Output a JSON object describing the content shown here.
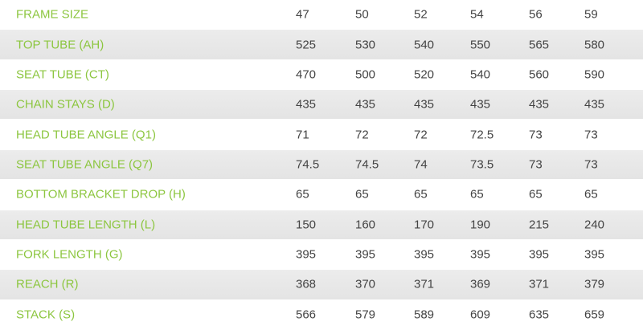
{
  "table": {
    "rows": [
      {
        "label": "FRAME SIZE",
        "values": [
          47,
          50,
          52,
          54,
          56,
          59
        ]
      },
      {
        "label": "TOP TUBE (AH)",
        "values": [
          525,
          530,
          540,
          550,
          565,
          580
        ]
      },
      {
        "label": "SEAT TUBE (CT)",
        "values": [
          470,
          500,
          520,
          540,
          560,
          590
        ]
      },
      {
        "label": "CHAIN STAYS (D)",
        "values": [
          435,
          435,
          435,
          435,
          435,
          435
        ]
      },
      {
        "label": "HEAD TUBE ANGLE (Q1)",
        "values": [
          71,
          72,
          72,
          72.5,
          73,
          73
        ]
      },
      {
        "label": "SEAT TUBE ANGLE (Q7)",
        "values": [
          74.5,
          74.5,
          74,
          73.5,
          73,
          73
        ]
      },
      {
        "label": "BOTTOM BRACKET DROP (H)",
        "values": [
          65,
          65,
          65,
          65,
          65,
          65
        ]
      },
      {
        "label": "HEAD TUBE LENGTH (L)",
        "values": [
          150,
          160,
          170,
          190,
          215,
          240
        ]
      },
      {
        "label": "FORK LENGTH (G)",
        "values": [
          395,
          395,
          395,
          395,
          395,
          395
        ]
      },
      {
        "label": "REACH (R)",
        "values": [
          368,
          370,
          371,
          369,
          371,
          379
        ]
      },
      {
        "label": "STACK (S)",
        "values": [
          566,
          579,
          589,
          609,
          635,
          659
        ]
      }
    ]
  }
}
